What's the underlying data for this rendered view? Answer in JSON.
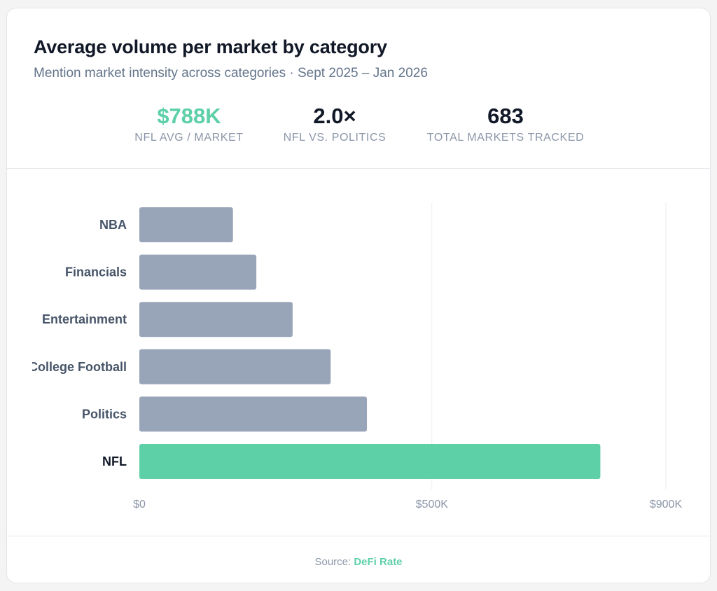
{
  "header": {
    "title": "Average volume per market by category",
    "subtitle": "Mention market intensity across categories · Sept 2025 – Jan 2026"
  },
  "stats": [
    {
      "value": "$788K",
      "label": "NFL AVG / MARKET"
    },
    {
      "value": "2.0×",
      "label": "NFL VS. POLITICS"
    },
    {
      "value": "683",
      "label": "TOTAL MARKETS TRACKED"
    }
  ],
  "colors": {
    "accent": "#5dd0a8",
    "bar_default": "#98a4b8",
    "title": "#111827",
    "muted": "#8b96a8"
  },
  "chart_data": {
    "type": "bar",
    "orientation": "horizontal",
    "categories": [
      "NBA",
      "Financials",
      "Entertainment",
      "College Football",
      "Politics",
      "NFL"
    ],
    "values": [
      160000,
      200000,
      262000,
      327000,
      389000,
      788000
    ],
    "highlight": "NFL",
    "xlim": [
      0,
      900000
    ],
    "ticks": [
      0,
      500000,
      900000
    ],
    "tick_labels": [
      "$0",
      "$500K",
      "$900K"
    ],
    "grid": true
  },
  "footer": {
    "source_prefix": "Source:",
    "source_name": "DeFi Rate"
  }
}
